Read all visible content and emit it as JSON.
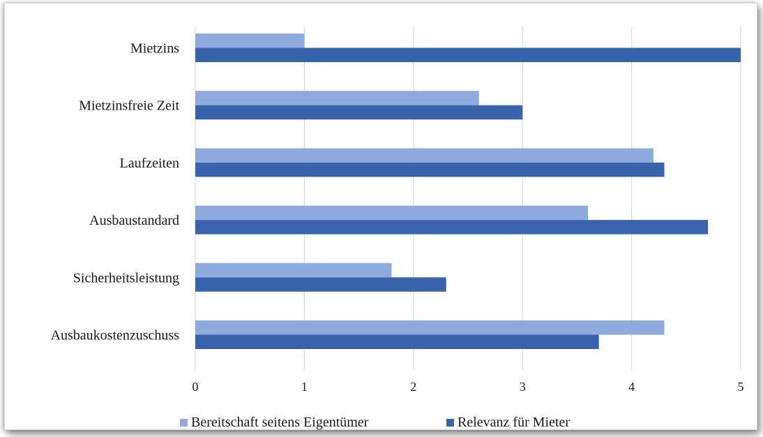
{
  "chart_data": {
    "type": "bar",
    "orientation": "horizontal",
    "categories": [
      "Mietzins",
      "Mietzinsfreie Zeit",
      "Laufzeiten",
      "Ausbaustandard",
      "Sicherheitsleistung",
      "Ausbaukostenzuschuss"
    ],
    "series": [
      {
        "name": "Bereitschaft seitens Eigentümer",
        "color": "#8faadc",
        "values": [
          1.0,
          2.6,
          4.2,
          3.6,
          1.8,
          4.3
        ]
      },
      {
        "name": "Relevanz für Mieter",
        "color": "#3a63ad",
        "values": [
          5.0,
          3.0,
          4.3,
          4.7,
          2.3,
          3.7
        ]
      }
    ],
    "xlim": [
      0,
      5
    ],
    "xticks": [
      "0",
      "1",
      "2",
      "3",
      "4",
      "5"
    ],
    "grid": "vertical",
    "legend": "bottom",
    "title": "",
    "xlabel": "",
    "ylabel": ""
  }
}
